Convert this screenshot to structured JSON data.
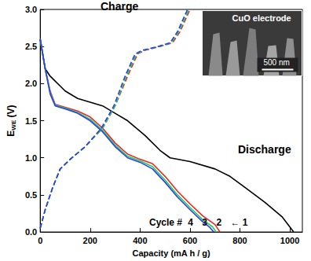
{
  "chart_data": {
    "type": "line",
    "xlabel": "Capacity (mA h / g)",
    "ylabel": {
      "main": "E",
      "sub": "WE",
      "unit": "(V)"
    },
    "xlim": [
      0,
      1050
    ],
    "xticks": [
      0,
      200,
      400,
      600,
      800,
      1000
    ],
    "ylim": [
      0,
      3
    ],
    "yticks": [
      {
        "value": 0,
        "label": "0.0"
      },
      {
        "value": 0.5,
        "label": "0.5"
      },
      {
        "value": 1,
        "label": "1.0"
      },
      {
        "value": 1.5,
        "label": "1.5"
      },
      {
        "value": 2,
        "label": "2.0"
      },
      {
        "value": 2.5,
        "label": "2.5"
      },
      {
        "value": 3,
        "label": "3.0"
      }
    ],
    "grid": false,
    "annotations": {
      "charge": "Charge",
      "discharge": "Discharge",
      "cycle": "Cycle #",
      "arrow": "←"
    },
    "inset": {
      "title": "CuO electrode",
      "scale_bar": "500 nm"
    },
    "series": [
      {
        "name": "1",
        "color": "#000000",
        "line_style": "solid",
        "x": [
          0,
          20,
          40,
          100,
          150,
          200,
          250,
          300,
          350,
          420,
          480,
          520,
          600,
          700,
          760,
          820,
          900,
          970,
          1015
        ],
        "values": [
          2.6,
          2.2,
          2.1,
          1.9,
          1.8,
          1.75,
          1.7,
          1.6,
          1.5,
          1.3,
          1.1,
          1.0,
          0.95,
          0.85,
          0.75,
          0.6,
          0.4,
          0.2,
          0.0
        ]
      },
      {
        "name": "2",
        "color": "#e8262a",
        "line_style": "solid",
        "x": [
          0,
          20,
          40,
          60,
          100,
          150,
          200,
          250,
          300,
          350,
          400,
          450,
          500,
          550,
          600,
          650,
          700,
          720
        ],
        "values": [
          2.6,
          2.2,
          1.9,
          1.72,
          1.68,
          1.63,
          1.55,
          1.4,
          1.2,
          1.05,
          0.98,
          0.92,
          0.75,
          0.55,
          0.38,
          0.22,
          0.1,
          0.0
        ]
      },
      {
        "name": "3",
        "color": "#2ecc40",
        "line_style": "solid",
        "x": [
          0,
          20,
          40,
          60,
          100,
          150,
          200,
          250,
          300,
          350,
          400,
          450,
          500,
          550,
          600,
          650,
          690,
          705
        ],
        "values": [
          2.6,
          2.2,
          1.88,
          1.71,
          1.67,
          1.61,
          1.52,
          1.37,
          1.17,
          1.02,
          0.96,
          0.88,
          0.7,
          0.5,
          0.33,
          0.17,
          0.07,
          0.0
        ]
      },
      {
        "name": "4",
        "color": "#1f3fff",
        "line_style": "solid",
        "x": [
          0,
          20,
          40,
          60,
          100,
          150,
          200,
          250,
          300,
          350,
          400,
          450,
          500,
          550,
          600,
          650,
          680,
          695
        ],
        "values": [
          2.6,
          2.2,
          1.86,
          1.7,
          1.66,
          1.6,
          1.5,
          1.35,
          1.15,
          1.0,
          0.94,
          0.85,
          0.67,
          0.47,
          0.3,
          0.14,
          0.06,
          0.0
        ]
      },
      {
        "name": "2",
        "color": "#e8262a",
        "line_style": "dashed",
        "x": [
          0,
          20,
          50,
          80,
          120,
          180,
          250,
          300,
          350,
          390,
          420,
          480,
          530,
          560,
          580,
          600
        ],
        "values": [
          0.05,
          0.3,
          0.6,
          0.85,
          0.98,
          1.15,
          1.4,
          1.7,
          2.1,
          2.4,
          2.45,
          2.5,
          2.55,
          2.7,
          2.85,
          3.0
        ]
      },
      {
        "name": "3",
        "color": "#2ecc40",
        "line_style": "dashed",
        "x": [
          0,
          20,
          50,
          80,
          120,
          180,
          250,
          300,
          345,
          385,
          415,
          475,
          525,
          555,
          575,
          595
        ],
        "values": [
          0.05,
          0.3,
          0.6,
          0.85,
          0.98,
          1.15,
          1.4,
          1.7,
          2.1,
          2.4,
          2.45,
          2.5,
          2.55,
          2.7,
          2.85,
          3.0
        ]
      },
      {
        "name": "4",
        "color": "#1f3fff",
        "line_style": "dashed",
        "x": [
          0,
          20,
          50,
          80,
          120,
          180,
          245,
          295,
          340,
          380,
          410,
          470,
          520,
          550,
          570,
          590
        ],
        "values": [
          0.05,
          0.3,
          0.6,
          0.85,
          0.98,
          1.15,
          1.4,
          1.7,
          2.1,
          2.4,
          2.45,
          2.5,
          2.55,
          2.7,
          2.85,
          3.0
        ]
      }
    ]
  }
}
